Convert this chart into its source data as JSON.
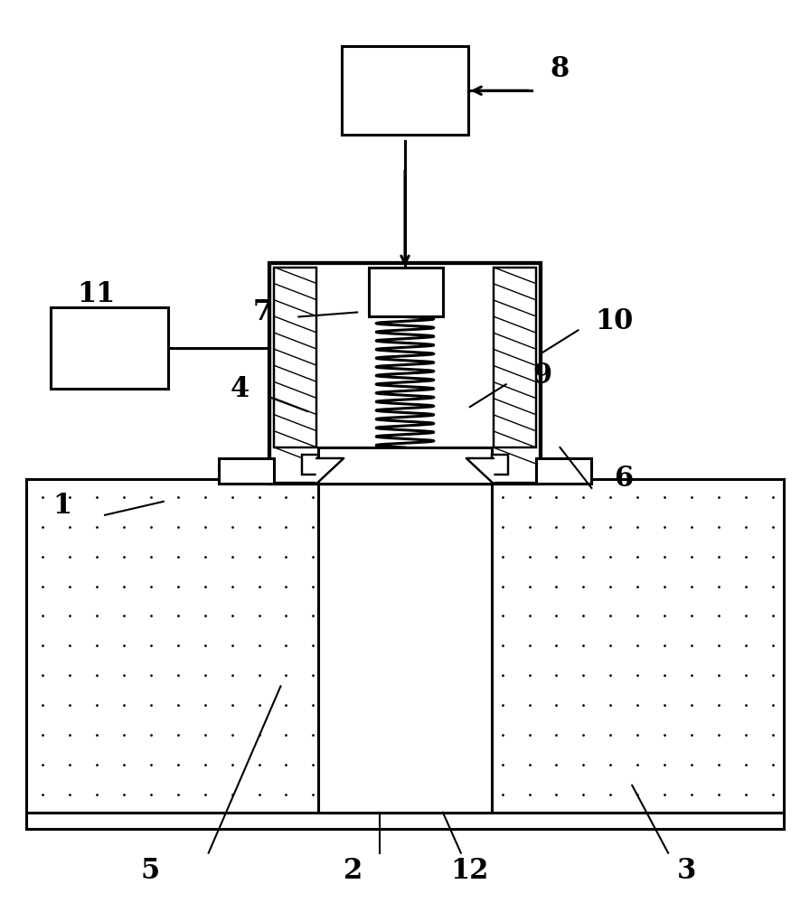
{
  "bg_color": "#ffffff",
  "lc": "#000000",
  "lw": 2.2,
  "fig_width": 8.96,
  "fig_height": 9.99,
  "dpi": 100
}
